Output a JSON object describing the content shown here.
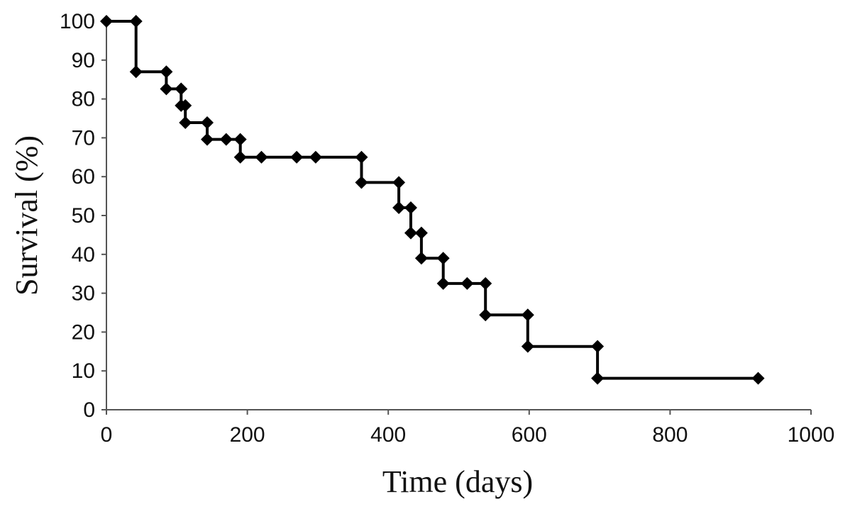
{
  "chart_data": {
    "type": "line",
    "subtype": "step",
    "title": "",
    "xlabel": "Time (days)",
    "ylabel": "Survival (%)",
    "xlim": [
      0,
      1000
    ],
    "ylim": [
      0,
      100
    ],
    "x_ticks": [
      "0",
      "200",
      "400",
      "600",
      "800",
      "1000"
    ],
    "y_ticks": [
      "0",
      "10",
      "20",
      "30",
      "40",
      "50",
      "60",
      "70",
      "80",
      "90",
      "100"
    ],
    "grid": false,
    "legend": "none",
    "line_color": "#000000",
    "marker": "diamond",
    "series": [
      {
        "x": [
          0,
          42,
          42,
          85,
          85,
          106,
          106,
          112,
          112,
          143,
          143,
          170,
          190,
          190,
          220,
          270,
          297,
          362,
          362,
          415,
          415,
          432,
          432,
          447,
          447,
          478,
          478,
          512,
          538,
          538,
          598,
          598,
          697,
          697,
          925
        ],
        "y": [
          100,
          100,
          87,
          87,
          82.6,
          82.6,
          78.3,
          78.3,
          73.9,
          73.9,
          69.6,
          69.6,
          69.6,
          65.0,
          65.0,
          65.0,
          65.0,
          65.0,
          58.5,
          58.5,
          52.0,
          52.0,
          45.5,
          45.5,
          39.0,
          39.0,
          32.5,
          32.5,
          32.5,
          24.4,
          24.4,
          16.3,
          16.3,
          8.1,
          8.1
        ]
      }
    ]
  }
}
